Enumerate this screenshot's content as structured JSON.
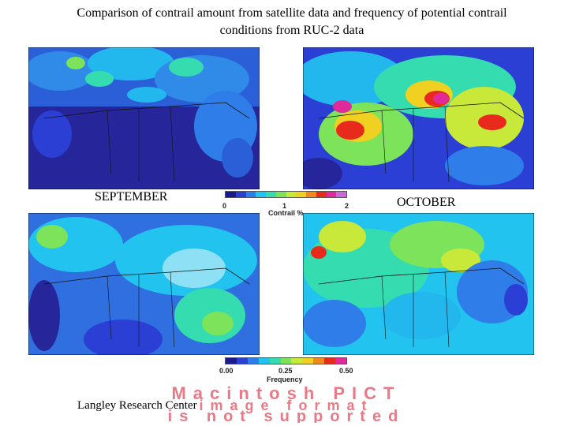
{
  "title_line1": "Comparison of contrail amount from satellite data and frequency of potential contrail",
  "title_line2": "conditions from RUC-2 data",
  "labels": {
    "left": "SEPTEMBER",
    "right": "OCTOBER"
  },
  "colorbar_top": {
    "title": "Contrail %",
    "ticks": [
      "0",
      "1",
      "2"
    ],
    "colors": [
      "#1a1a8c",
      "#2b3fd4",
      "#2f7de8",
      "#22c3ee",
      "#35dcb0",
      "#7ce35a",
      "#c8e83a",
      "#f0d020",
      "#f08a1c",
      "#e82a1c",
      "#e02a9c",
      "#c86ad8"
    ]
  },
  "colorbar_bottom": {
    "title": "Frequency",
    "ticks": [
      "0.00",
      "0.25",
      "0.50"
    ],
    "colors": [
      "#1a1a8c",
      "#2b3fd4",
      "#2f7de8",
      "#22c3ee",
      "#35dcb0",
      "#7ce35a",
      "#c8e83a",
      "#f0d020",
      "#f08a1c",
      "#e82a1c",
      "#e02a9c"
    ]
  },
  "watermark": {
    "lines": [
      "Macintosh PICT",
      "image format",
      "is not supported"
    ],
    "color": "#e87a86"
  },
  "footer": "Langley Research Center",
  "maps": [
    {
      "id": "sep-satellite",
      "base": "#2a2a8e"
    },
    {
      "id": "oct-satellite",
      "base": "#2a3ab8"
    },
    {
      "id": "sep-ruc",
      "base": "#2f6fe0"
    },
    {
      "id": "oct-ruc",
      "base": "#39c0e8"
    }
  ]
}
